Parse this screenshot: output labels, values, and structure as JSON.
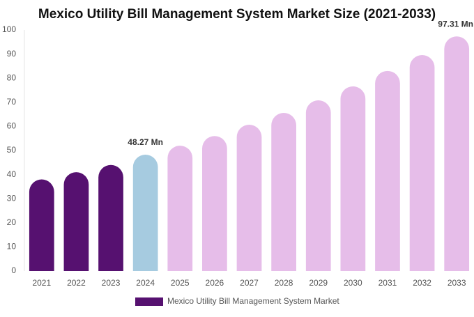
{
  "chart_data": {
    "type": "bar",
    "title": "Mexico Utility Bill Management System Market Size (2021-2033)",
    "categories": [
      "2021",
      "2022",
      "2023",
      "2024",
      "2025",
      "2026",
      "2027",
      "2028",
      "2029",
      "2030",
      "2031",
      "2032",
      "2033"
    ],
    "series": [
      {
        "name": "Mexico Utility Bill Management System Market",
        "color": "#561170",
        "values": [
          38,
          41,
          44,
          48.27,
          52,
          56,
          60.7,
          65.6,
          70.8,
          76.6,
          83,
          89.6,
          97.31
        ],
        "colors": [
          "#561170",
          "#561170",
          "#561170",
          "#a6cbe0",
          "#e6bde9",
          "#e6bde9",
          "#e6bde9",
          "#e6bde9",
          "#e6bde9",
          "#e6bde9",
          "#e6bde9",
          "#e6bde9",
          "#e6bde9"
        ],
        "value_labels": [
          null,
          null,
          null,
          "48.27 Mn",
          null,
          null,
          null,
          null,
          null,
          null,
          null,
          null,
          "97.31 Mn"
        ]
      }
    ],
    "ylim": [
      0,
      100
    ],
    "yticks": [
      0,
      10,
      20,
      30,
      40,
      50,
      60,
      70,
      80,
      90,
      100
    ],
    "grid": false
  }
}
